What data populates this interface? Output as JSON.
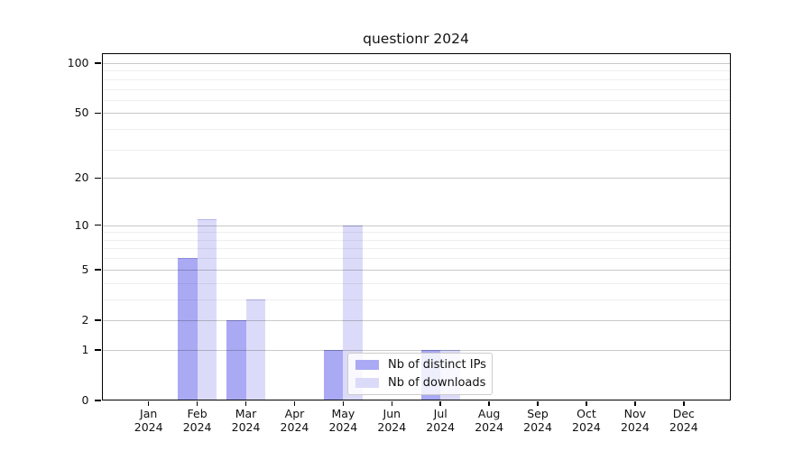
{
  "chart_data": {
    "type": "bar",
    "title": "questionr 2024",
    "x": [
      "Jan",
      "Feb",
      "Mar",
      "Apr",
      "May",
      "Jun",
      "Jul",
      "Aug",
      "Sep",
      "Oct",
      "Nov",
      "Dec"
    ],
    "x_year": "2024",
    "series": [
      {
        "name": "Nb of distinct IPs",
        "color": "#a9a9f4",
        "values": [
          0,
          6,
          2,
          0,
          1,
          0,
          1,
          0,
          0,
          0,
          0,
          0
        ]
      },
      {
        "name": "Nb of downloads",
        "color": "#dbdbf9",
        "values": [
          0,
          11,
          3,
          0,
          10,
          0,
          1,
          0,
          0,
          0,
          0,
          0
        ]
      }
    ],
    "yscale": "log1p",
    "ylim": [
      0,
      115
    ],
    "y_major_ticks": [
      0,
      1,
      2,
      5,
      10,
      20,
      50,
      100
    ],
    "y_minor_gridlines": [
      3,
      4,
      6,
      7,
      8,
      9,
      30,
      40,
      60,
      70,
      80,
      90
    ],
    "grid": true,
    "legend_position": "lower center",
    "colors": {
      "axis": "#000000",
      "grid_major": "#c9c9c9",
      "grid_minor": "#efefef",
      "legend_border": "#cccccc"
    }
  }
}
